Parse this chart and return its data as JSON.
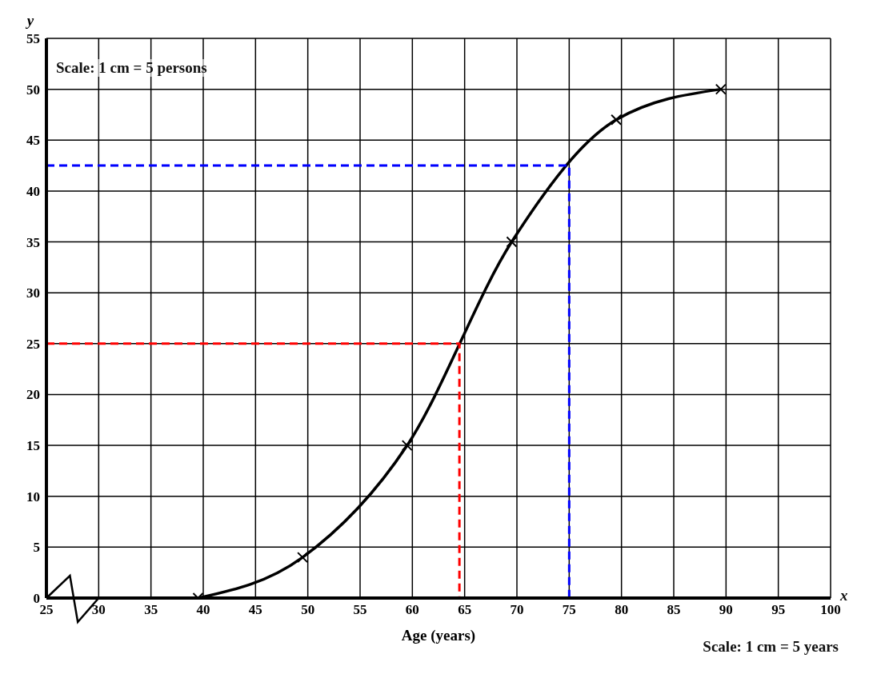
{
  "chart_data": {
    "type": "line",
    "xlabel": "Age (years)",
    "ylabel": "y",
    "annotations": [
      "Scale: 1 cm = 5 persons",
      "Scale: 1 cm = 5 years",
      "x"
    ],
    "xlim": [
      25,
      100
    ],
    "xticks": [
      25,
      30,
      35,
      40,
      45,
      50,
      55,
      60,
      65,
      70,
      75,
      80,
      85,
      90,
      95,
      100
    ],
    "ylim": [
      0,
      55
    ],
    "yticks": [
      0,
      5,
      10,
      15,
      20,
      25,
      30,
      35,
      40,
      45,
      50,
      55
    ],
    "grid": true,
    "marker": "cross",
    "series": [
      {
        "color": "#000000",
        "x": [
          39.5,
          49.5,
          59.5,
          69.5,
          79.5,
          89.5
        ],
        "values": [
          0,
          4,
          15,
          35,
          47,
          50
        ]
      },
      {
        "color": "#ff0000",
        "line_style": "dashed",
        "marker": "none",
        "x": [
          25,
          64.5,
          64.5
        ],
        "values": [
          25,
          25,
          0
        ]
      },
      {
        "color": "#0000ff",
        "line_style": "dashed",
        "marker": "none",
        "x": [
          25,
          75,
          75
        ],
        "values": [
          42.5,
          42.5,
          0
        ]
      }
    ]
  }
}
